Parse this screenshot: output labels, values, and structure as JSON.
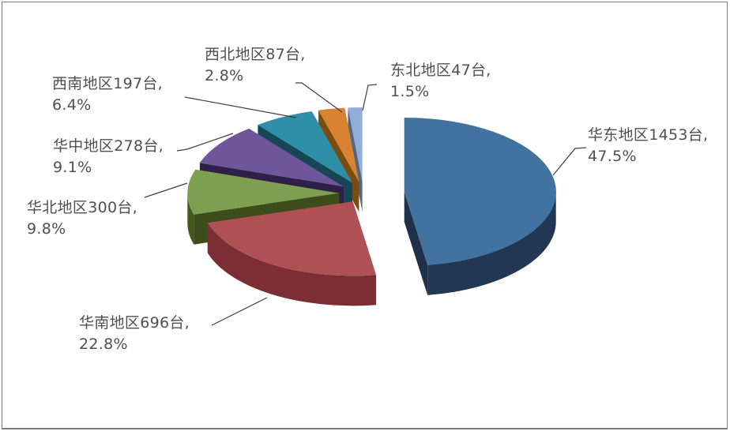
{
  "chart_data": {
    "type": "pie",
    "style": "3d-exploded",
    "title": "",
    "unit": "台",
    "start_angle_deg": 0,
    "direction": "clockwise",
    "legend": "none",
    "labels_outside": true,
    "slices": [
      {
        "name": "华东地区",
        "units": 1453,
        "pct": 47.5,
        "top_color": "#4272A0",
        "side_color": "#223754"
      },
      {
        "name": "华南地区",
        "units": 696,
        "pct": 22.8,
        "top_color": "#B05055",
        "side_color": "#7B2F34"
      },
      {
        "name": "华北地区",
        "units": 300,
        "pct": 9.8,
        "top_color": "#7CA04F",
        "side_color": "#44581F"
      },
      {
        "name": "华中地区",
        "units": 278,
        "pct": 9.1,
        "top_color": "#6F5599",
        "side_color": "#372353"
      },
      {
        "name": "西南地区",
        "units": 197,
        "pct": 6.4,
        "top_color": "#2F8FA9",
        "side_color": "#1A5163"
      },
      {
        "name": "西北地区",
        "units": 87,
        "pct": 2.8,
        "top_color": "#D88232",
        "side_color": "#8A5712"
      },
      {
        "name": "东北地区",
        "units": 47,
        "pct": 1.5,
        "top_color": "#92AED8",
        "side_color": "#5F7392"
      }
    ]
  },
  "callouts": [
    {
      "line1": "华东地区1453台,",
      "line2": "47.5%"
    },
    {
      "line1": "华南地区696台,",
      "line2": "22.8%"
    },
    {
      "line1": "华北地区300台,",
      "line2": "9.8%"
    },
    {
      "line1": "华中地区278台,",
      "line2": "9.1%"
    },
    {
      "line1": "西南地区197台,",
      "line2": "6.4%"
    },
    {
      "line1": "西北地区87台,",
      "line2": "2.8%"
    },
    {
      "line1": "东北地区47台,",
      "line2": "1.5%"
    }
  ],
  "colors": {
    "label_text": "#4F4F4F",
    "leader_line": "#3F3F3F",
    "border": "#7C7C7C",
    "background": "#FFFFFF"
  }
}
